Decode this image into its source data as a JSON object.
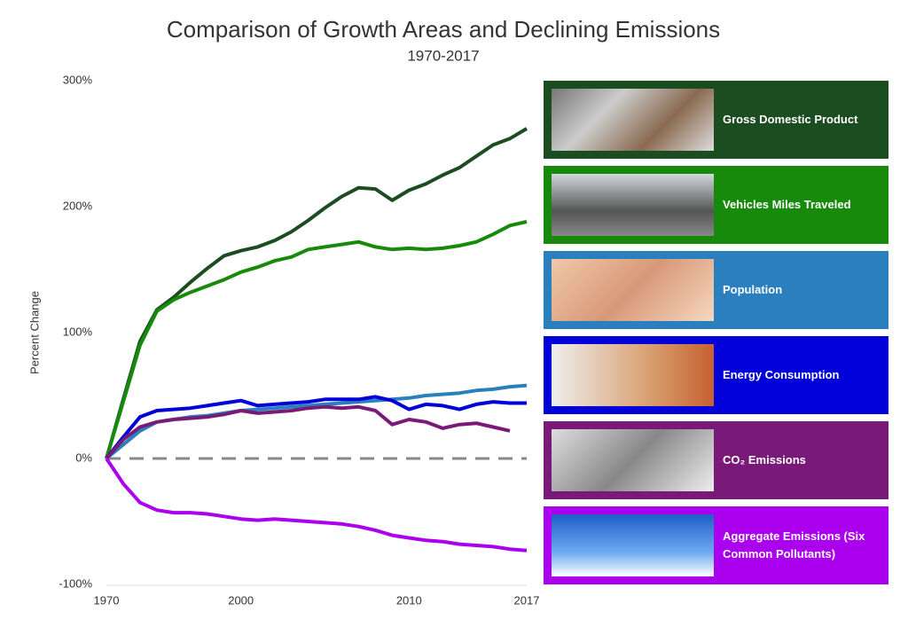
{
  "chart_data": {
    "type": "line",
    "title": "Comparison of Growth Areas and Declining Emissions",
    "subtitle": "1970-2017",
    "y_label": "Percent Change",
    "categories": [
      "1970",
      null,
      null,
      null,
      null,
      null,
      null,
      null,
      "2000",
      null,
      null,
      null,
      null,
      null,
      null,
      null,
      null,
      null,
      "2010",
      null,
      null,
      null,
      null,
      null,
      null,
      "2017"
    ],
    "ylim": [
      -100,
      300
    ],
    "yticks": [
      {
        "value": -100,
        "label": "-100%"
      },
      {
        "value": 0,
        "label": "0%"
      },
      {
        "value": 100,
        "label": "100%"
      },
      {
        "value": 200,
        "label": "200%"
      },
      {
        "value": 300,
        "label": "300%"
      }
    ],
    "series": [
      {
        "name": "Gross Domestic Product",
        "color": "#1b4d20",
        "values": [
          0,
          47,
          93,
          118,
          128,
          140,
          151,
          161,
          165,
          168,
          173,
          180,
          189,
          199,
          208,
          215,
          214,
          205,
          213,
          218,
          225,
          231,
          240,
          249,
          254,
          262
        ]
      },
      {
        "name": "Vehicles Miles Traveled",
        "color": "#178a0c",
        "values": [
          0,
          45,
          90,
          117,
          126,
          132,
          137,
          142,
          148,
          152,
          157,
          160,
          166,
          168,
          170,
          172,
          168,
          166,
          167,
          166,
          167,
          169,
          172,
          178,
          185,
          188
        ]
      },
      {
        "name": "Population",
        "color": "#2a80bf",
        "values": [
          0,
          11,
          22,
          29,
          31,
          33,
          34,
          36,
          38,
          39,
          40,
          41,
          42,
          43,
          44,
          45,
          46,
          47,
          48,
          50,
          51,
          52,
          54,
          55,
          57,
          58
        ]
      },
      {
        "name": "Energy Consumption",
        "color": "#0000d8",
        "values": [
          0,
          17,
          33,
          38,
          39,
          40,
          42,
          44,
          46,
          42,
          43,
          44,
          45,
          47,
          47,
          47,
          49,
          46,
          39,
          43,
          42,
          39,
          43,
          45,
          44,
          44
        ]
      },
      {
        "name": "CO₂ Emissions",
        "color": "#7a1a78",
        "values": [
          0,
          15,
          25,
          29,
          31,
          32,
          33,
          35,
          38,
          36,
          37,
          38,
          40,
          41,
          40,
          41,
          38,
          27,
          31,
          29,
          24,
          27,
          28,
          25,
          22,
          null
        ]
      },
      {
        "name": "Aggregate Emissions (Six Common Pollutants)",
        "color": "#ab00ee",
        "values": [
          0,
          -20,
          -35,
          -41,
          -43,
          -43,
          -44,
          -46,
          -48,
          -49,
          -48,
          -49,
          -50,
          -51,
          -52,
          -54,
          -57,
          -61,
          -63,
          -65,
          -66,
          -68,
          -69,
          -70,
          -72,
          -73
        ]
      }
    ]
  }
}
